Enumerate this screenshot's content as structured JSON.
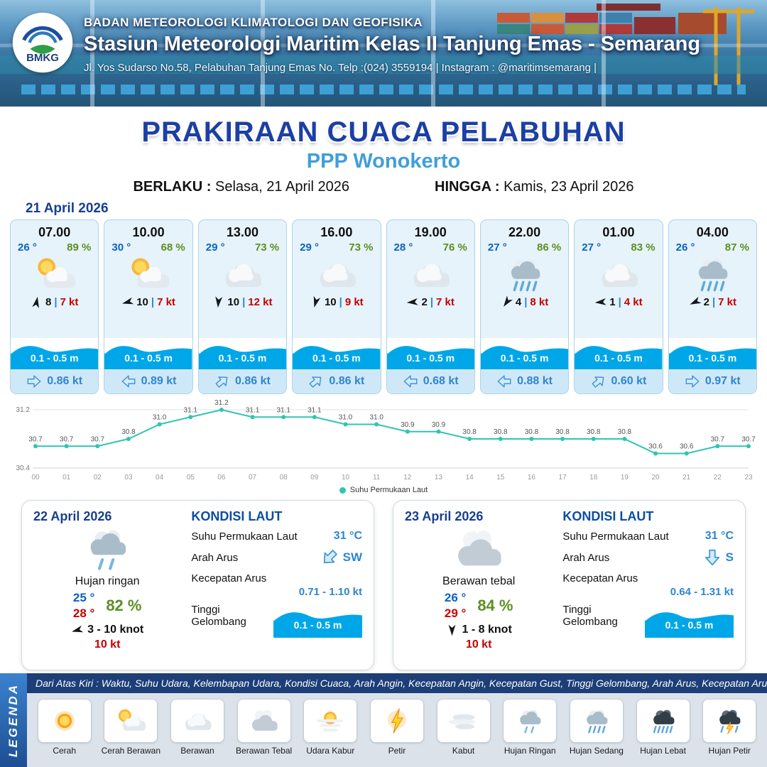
{
  "header": {
    "logo_text": "BMKG",
    "org": "BADAN METEOROLOGI KLIMATOLOGI DAN GEOFISIKA",
    "station": "Stasiun Meteorologi Maritim Kelas II Tanjung Emas - Semarang",
    "address": "Jl. Yos Sudarso No.58, Pelabuhan Tanjung Emas No. Telp :(024) 3559194 | Instagram : @maritimsemarang |"
  },
  "title": {
    "main": "PRAKIRAAN CUACA PELABUHAN",
    "subtitle": "PPP Wonokerto",
    "berlaku_label": "BERLAKU :",
    "berlaku_value": "Selasa, 21 April 2026",
    "hingga_label": "HINGGA :",
    "hingga_value": "Kamis, 23 April 2026"
  },
  "forecast": {
    "date": "21 April 2026",
    "cards": [
      {
        "time": "07.00",
        "temp": "26 °",
        "humidity": "89 %",
        "icon": "cerah-berawan",
        "wind_deg": 10,
        "wind_speed": "8",
        "sep": "|",
        "gust": "7 kt",
        "wave": "0.1 - 0.5 m",
        "current_deg": 0,
        "current": "0.86 kt"
      },
      {
        "time": "10.00",
        "temp": "30 °",
        "humidity": "68 %",
        "icon": "cerah-berawan",
        "wind_deg": 255,
        "wind_speed": "10",
        "sep": "|",
        "gust": "7 kt",
        "wave": "0.1 - 0.5 m",
        "current_deg": 180,
        "current": "0.89 kt"
      },
      {
        "time": "13.00",
        "temp": "29 °",
        "humidity": "73 %",
        "icon": "berawan",
        "wind_deg": 185,
        "wind_speed": "10",
        "sep": "|",
        "gust": "12 kt",
        "wave": "0.1 - 0.5 m",
        "current_deg": -40,
        "current": "0.86 kt"
      },
      {
        "time": "16.00",
        "temp": "29 °",
        "humidity": "73 %",
        "icon": "berawan",
        "wind_deg": 195,
        "wind_speed": "10",
        "sep": "|",
        "gust": "9 kt",
        "wave": "0.1 - 0.5 m",
        "current_deg": -40,
        "current": "0.86 kt"
      },
      {
        "time": "19.00",
        "temp": "28 °",
        "humidity": "76 %",
        "icon": "berawan",
        "wind_deg": 265,
        "wind_speed": "2",
        "sep": "|",
        "gust": "7 kt",
        "wave": "0.1 - 0.5 m",
        "current_deg": 180,
        "current": "0.68 kt"
      },
      {
        "time": "22.00",
        "temp": "27 °",
        "humidity": "86 %",
        "icon": "hujan-sedang",
        "wind_deg": 215,
        "wind_speed": "4",
        "sep": "|",
        "gust": "8 kt",
        "wave": "0.1 - 0.5 m",
        "current_deg": 180,
        "current": "0.88 kt"
      },
      {
        "time": "01.00",
        "temp": "27 °",
        "humidity": "83 %",
        "icon": "berawan",
        "wind_deg": 265,
        "wind_speed": "1",
        "sep": "|",
        "gust": "4 kt",
        "wave": "0.1 - 0.5 m",
        "current_deg": -40,
        "current": "0.60 kt"
      },
      {
        "time": "04.00",
        "temp": "26 °",
        "humidity": "87 %",
        "icon": "hujan-sedang",
        "wind_deg": 245,
        "wind_speed": "2",
        "sep": "|",
        "gust": "7 kt",
        "wave": "0.1 - 0.5 m",
        "current_deg": 0,
        "current": "0.97 kt"
      }
    ]
  },
  "chart_data": {
    "type": "line",
    "series_name": "Suhu Permukaan Laut",
    "x": [
      "00",
      "01",
      "02",
      "03",
      "04",
      "05",
      "06",
      "07",
      "08",
      "09",
      "10",
      "11",
      "12",
      "13",
      "14",
      "15",
      "16",
      "17",
      "18",
      "19",
      "20",
      "21",
      "22",
      "23"
    ],
    "values": [
      30.7,
      30.7,
      30.7,
      30.8,
      31.0,
      31.1,
      31.2,
      31.1,
      31.1,
      31.1,
      31.0,
      31.0,
      30.9,
      30.9,
      30.8,
      30.8,
      30.8,
      30.8,
      30.8,
      30.8,
      30.6,
      30.6,
      30.7,
      30.7
    ],
    "ylim": [
      30.4,
      31.2
    ],
    "yticks": [
      31.2,
      30.4
    ],
    "line_color": "#2fc5b2",
    "grid": true,
    "legend_position": "bottom"
  },
  "days": [
    {
      "date": "22 April 2026",
      "icon": "hujan-ringan",
      "condition": "Hujan ringan",
      "temp_min": "25 °",
      "temp_max": "28 °",
      "humidity": "82 %",
      "wind_deg": 255,
      "wind_range": "3 - 10 knot",
      "gust": "10 kt",
      "sea_title": "KONDISI LAUT",
      "sst_label": "Suhu Permukaan Laut",
      "sst": "31 °C",
      "arus_label": "Arah Arus",
      "arus_dir": "SW",
      "arus_deg": 135,
      "speed_label": "Kecepatan Arus",
      "speed": "0.71 - 1.10 kt",
      "wave_label": "Tinggi Gelombang",
      "wave": "0.1 - 0.5 m"
    },
    {
      "date": "23 April 2026",
      "icon": "berawan-tebal",
      "condition": "Berawan tebal",
      "temp_min": "26 °",
      "temp_max": "29 °",
      "humidity": "84 %",
      "wind_deg": 180,
      "wind_range": "1 - 8 knot",
      "gust": "10 kt",
      "sea_title": "KONDISI LAUT",
      "sst_label": "Suhu Permukaan Laut",
      "sst": "31 °C",
      "arus_label": "Arah Arus",
      "arus_dir": "S",
      "arus_deg": 90,
      "speed_label": "Kecepatan Arus",
      "speed": "0.64 - 1.31 kt",
      "wave_label": "Tinggi Gelombang",
      "wave": "0.1 - 0.5 m"
    }
  ],
  "legend": {
    "title": "LEGENDA",
    "description": "Dari Atas Kiri : Waktu, Suhu Udara, Kelembapan Udara, Kondisi Cuaca, Arah Angin, Kecepatan Angin, Kecepatan Gust, Tinggi Gelombang, Arah Arus, Kecepatan Arus",
    "items": [
      {
        "label": "Cerah",
        "icon": "cerah"
      },
      {
        "label": "Cerah Berawan",
        "icon": "cerah-berawan"
      },
      {
        "label": "Berawan",
        "icon": "berawan"
      },
      {
        "label": "Berawan Tebal",
        "icon": "berawan-tebal"
      },
      {
        "label": "Udara Kabur",
        "icon": "udara-kabur"
      },
      {
        "label": "Petir",
        "icon": "petir"
      },
      {
        "label": "Kabut",
        "icon": "kabut"
      },
      {
        "label": "Hujan Ringan",
        "icon": "hujan-ringan"
      },
      {
        "label": "Hujan Sedang",
        "icon": "hujan-sedang"
      },
      {
        "label": "Hujan Lebat",
        "icon": "hujan-lebat"
      },
      {
        "label": "Hujan Petir",
        "icon": "hujan-petir"
      }
    ]
  },
  "colors": {
    "navy": "#1c3fa5",
    "subtitle_blue": "#3f9fd8",
    "temp_blue": "#0b62c4",
    "humidity_green": "#5d8f20",
    "gust_red": "#c40000",
    "wave_blue": "#00a7e8",
    "current_blue": "#2e86d0",
    "chart_teal": "#2fc5b2"
  }
}
